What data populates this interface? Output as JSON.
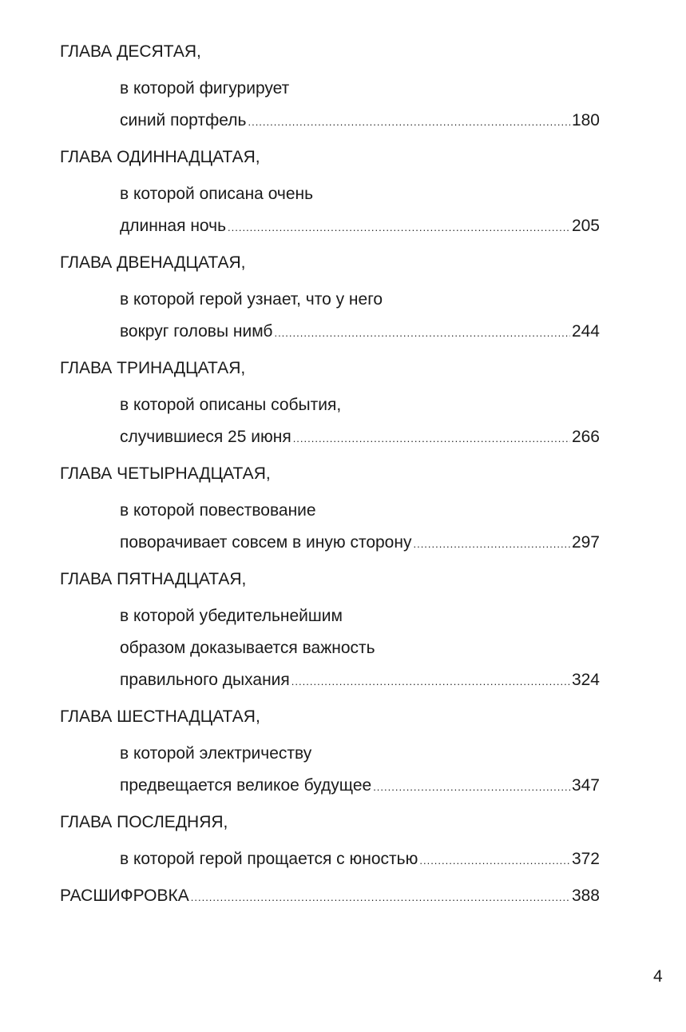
{
  "toc": [
    {
      "heading": "ГЛАВА ДЕСЯТАЯ,",
      "lines": [
        "в которой фигурирует"
      ],
      "last": "синий портфель",
      "page": "180"
    },
    {
      "heading": "ГЛАВА ОДИННАДЦАТАЯ,",
      "lines": [
        "в которой описана очень"
      ],
      "last": "длинная ночь",
      "page": "205"
    },
    {
      "heading": "ГЛАВА ДВЕНАДЦАТАЯ,",
      "lines": [
        "в которой герой узнает, что у него"
      ],
      "last": "вокруг головы нимб",
      "page": "244"
    },
    {
      "heading": "ГЛАВА ТРИНАДЦАТАЯ,",
      "lines": [
        "в которой описаны события,"
      ],
      "last": "случившиеся 25 июня",
      "page": "266"
    },
    {
      "heading": "ГЛАВА ЧЕТЫРНАДЦАТАЯ,",
      "lines": [
        "в которой повествование"
      ],
      "last": "поворачивает совсем в иную сторону",
      "page": "297"
    },
    {
      "heading": "ГЛАВА ПЯТНАДЦАТАЯ,",
      "lines": [
        "в которой убедительнейшим",
        "образом доказывается важность"
      ],
      "last": "правильного дыхания",
      "page": "324"
    },
    {
      "heading": "ГЛАВА ШЕСТНАДЦАТАЯ,",
      "lines": [
        "в которой электричеству"
      ],
      "last": "предвещается великое будущее",
      "page": "347"
    },
    {
      "heading": "ГЛАВА ПОСЛЕДНЯЯ,",
      "lines": [],
      "last": "в которой герой прощается с юностью",
      "page": "372"
    }
  ],
  "final": {
    "label": "РАСШИФРОВКА",
    "page": "388"
  },
  "page_number": "4"
}
